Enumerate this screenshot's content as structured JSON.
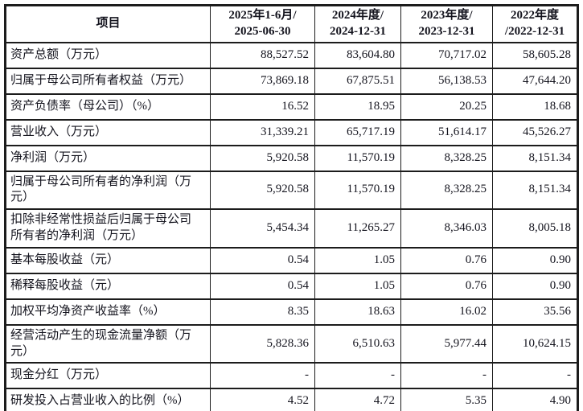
{
  "table": {
    "header": {
      "item_label": "项目",
      "periods": [
        {
          "line1": "2025年1-6月/",
          "line2": "2025-06-30"
        },
        {
          "line1": "2024年度/",
          "line2": "2024-12-31"
        },
        {
          "line1": "2023年度/",
          "line2": "2023-12-31"
        },
        {
          "line1": "2022年度",
          "line2": "/2022-12-31"
        }
      ]
    },
    "rows": [
      {
        "label": "资产总额（万元）",
        "values": [
          "88,527.52",
          "83,604.80",
          "70,717.02",
          "58,605.28"
        ]
      },
      {
        "label": "归属于母公司所有者权益（万元）",
        "values": [
          "73,869.18",
          "67,875.51",
          "56,138.53",
          "47,644.20"
        ]
      },
      {
        "label": "资产负债率（母公司）（%）",
        "values": [
          "16.52",
          "18.95",
          "20.25",
          "18.68"
        ]
      },
      {
        "label": "营业收入（万元）",
        "values": [
          "31,339.21",
          "65,717.19",
          "51,614.17",
          "45,526.27"
        ]
      },
      {
        "label": "净利润（万元）",
        "values": [
          "5,920.58",
          "11,570.19",
          "8,328.25",
          "8,151.34"
        ]
      },
      {
        "label": "归属于母公司所有者的净利润（万元）",
        "values": [
          "5,920.58",
          "11,570.19",
          "8,328.25",
          "8,151.34"
        ]
      },
      {
        "label": "扣除非经常性损益后归属于母公司所有者的净利润（万元）",
        "values": [
          "5,454.34",
          "11,265.27",
          "8,346.03",
          "8,005.18"
        ]
      },
      {
        "label": "基本每股收益（元）",
        "values": [
          "0.54",
          "1.05",
          "0.76",
          "0.90"
        ]
      },
      {
        "label": "稀释每股收益（元）",
        "values": [
          "0.54",
          "1.05",
          "0.76",
          "0.90"
        ]
      },
      {
        "label": "加权平均净资产收益率（%）",
        "values": [
          "8.35",
          "18.63",
          "16.02",
          "35.56"
        ]
      },
      {
        "label": "经营活动产生的现金流量净额（万元）",
        "values": [
          "5,828.36",
          "6,510.63",
          "5,977.44",
          "10,624.15"
        ]
      },
      {
        "label": "现金分红（万元）",
        "values": [
          "-",
          "-",
          "-",
          "-"
        ]
      },
      {
        "label": "研发投入占营业收入的比例（%）",
        "values": [
          "4.52",
          "4.72",
          "5.35",
          "4.90"
        ]
      }
    ]
  }
}
